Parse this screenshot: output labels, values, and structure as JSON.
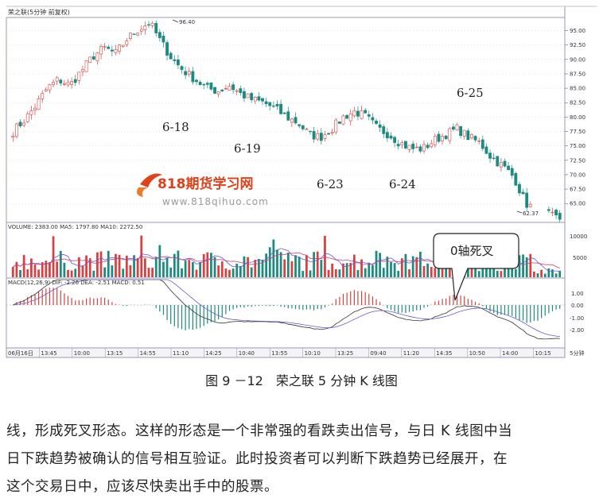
{
  "chart_title": "荣之联(5分钟 前复权)",
  "price_axis_ticks": [
    "95.00",
    "92.50",
    "90.00",
    "87.50",
    "85.00",
    "82.50",
    "80.00",
    "77.50",
    "75.00",
    "72.50",
    "70.00",
    "67.50",
    "65.00"
  ],
  "peak_label": "96.40",
  "low_label": "62.37",
  "date_labels": [
    "6-18",
    "6-19",
    "6-23",
    "6-24",
    "6-25"
  ],
  "watermark": {
    "title": "818期货学习网",
    "url": "www.818qihuo.com"
  },
  "volume_header": "VOLUME: 2383.00  MA5: 1797.80  MA10: 2272.50",
  "volume_ticks": [
    "10000",
    "5000"
  ],
  "callout": "0轴死叉",
  "macd_header": "MACD(12,26,9)  DIF: -2.26  DEA: -2.51  MACD: 0.51",
  "macd_ticks": [
    "1.00",
    "0.00",
    "-1.00",
    "-2.00"
  ],
  "time_labels": [
    "06月16日",
    "13:45",
    "10:00",
    "13:15",
    "14:55",
    "11:10",
    "14:25",
    "10:40",
    "13:55",
    "10:10",
    "13:25",
    "09:40",
    "11:20",
    "14:35",
    "10:50",
    "14:00",
    "10:15"
  ],
  "time_axis_unit": "5分钟",
  "caption": "图 9 －12　荣之联 5 分钟 K 线图",
  "paragraph": [
    "线，形成死叉形态。这样的形态是一个非常强的看跌卖出信号，与日 K 线图中当",
    "日下跌趋势被确认的信号相互验证。此时投资者可以判断下跌趋势已经展开，在",
    "这个交易日中，应该尽快卖出手中的股票。"
  ],
  "colors": {
    "up": "#d94141",
    "down": "#1d8a80",
    "ma5": "#6a5acd",
    "ma10": "#c04080",
    "grid": "#c8c8d8",
    "frame": "#8a8aa0",
    "logo": "#e0401a"
  },
  "chart_data": {
    "type": "candlestick",
    "title": "荣之联(5分钟 前复权)",
    "ylim": [
      62,
      97
    ],
    "price_path": [
      77.5,
      79.5,
      82,
      85,
      86.5,
      85.5,
      88,
      90.5,
      92,
      91,
      93.5,
      95.2,
      96.4,
      93,
      90,
      88,
      86.5,
      85,
      84.5,
      85.5,
      84,
      83,
      82.5,
      81.5,
      80,
      79,
      77,
      76.5,
      78,
      80,
      81,
      80,
      78,
      77,
      75.5,
      74.5,
      74.5,
      76,
      77,
      78,
      76.5,
      75.5,
      73,
      71.5,
      69.5,
      65,
      64,
      63,
      62.37
    ],
    "peak": 96.4,
    "low": 62.37
  }
}
